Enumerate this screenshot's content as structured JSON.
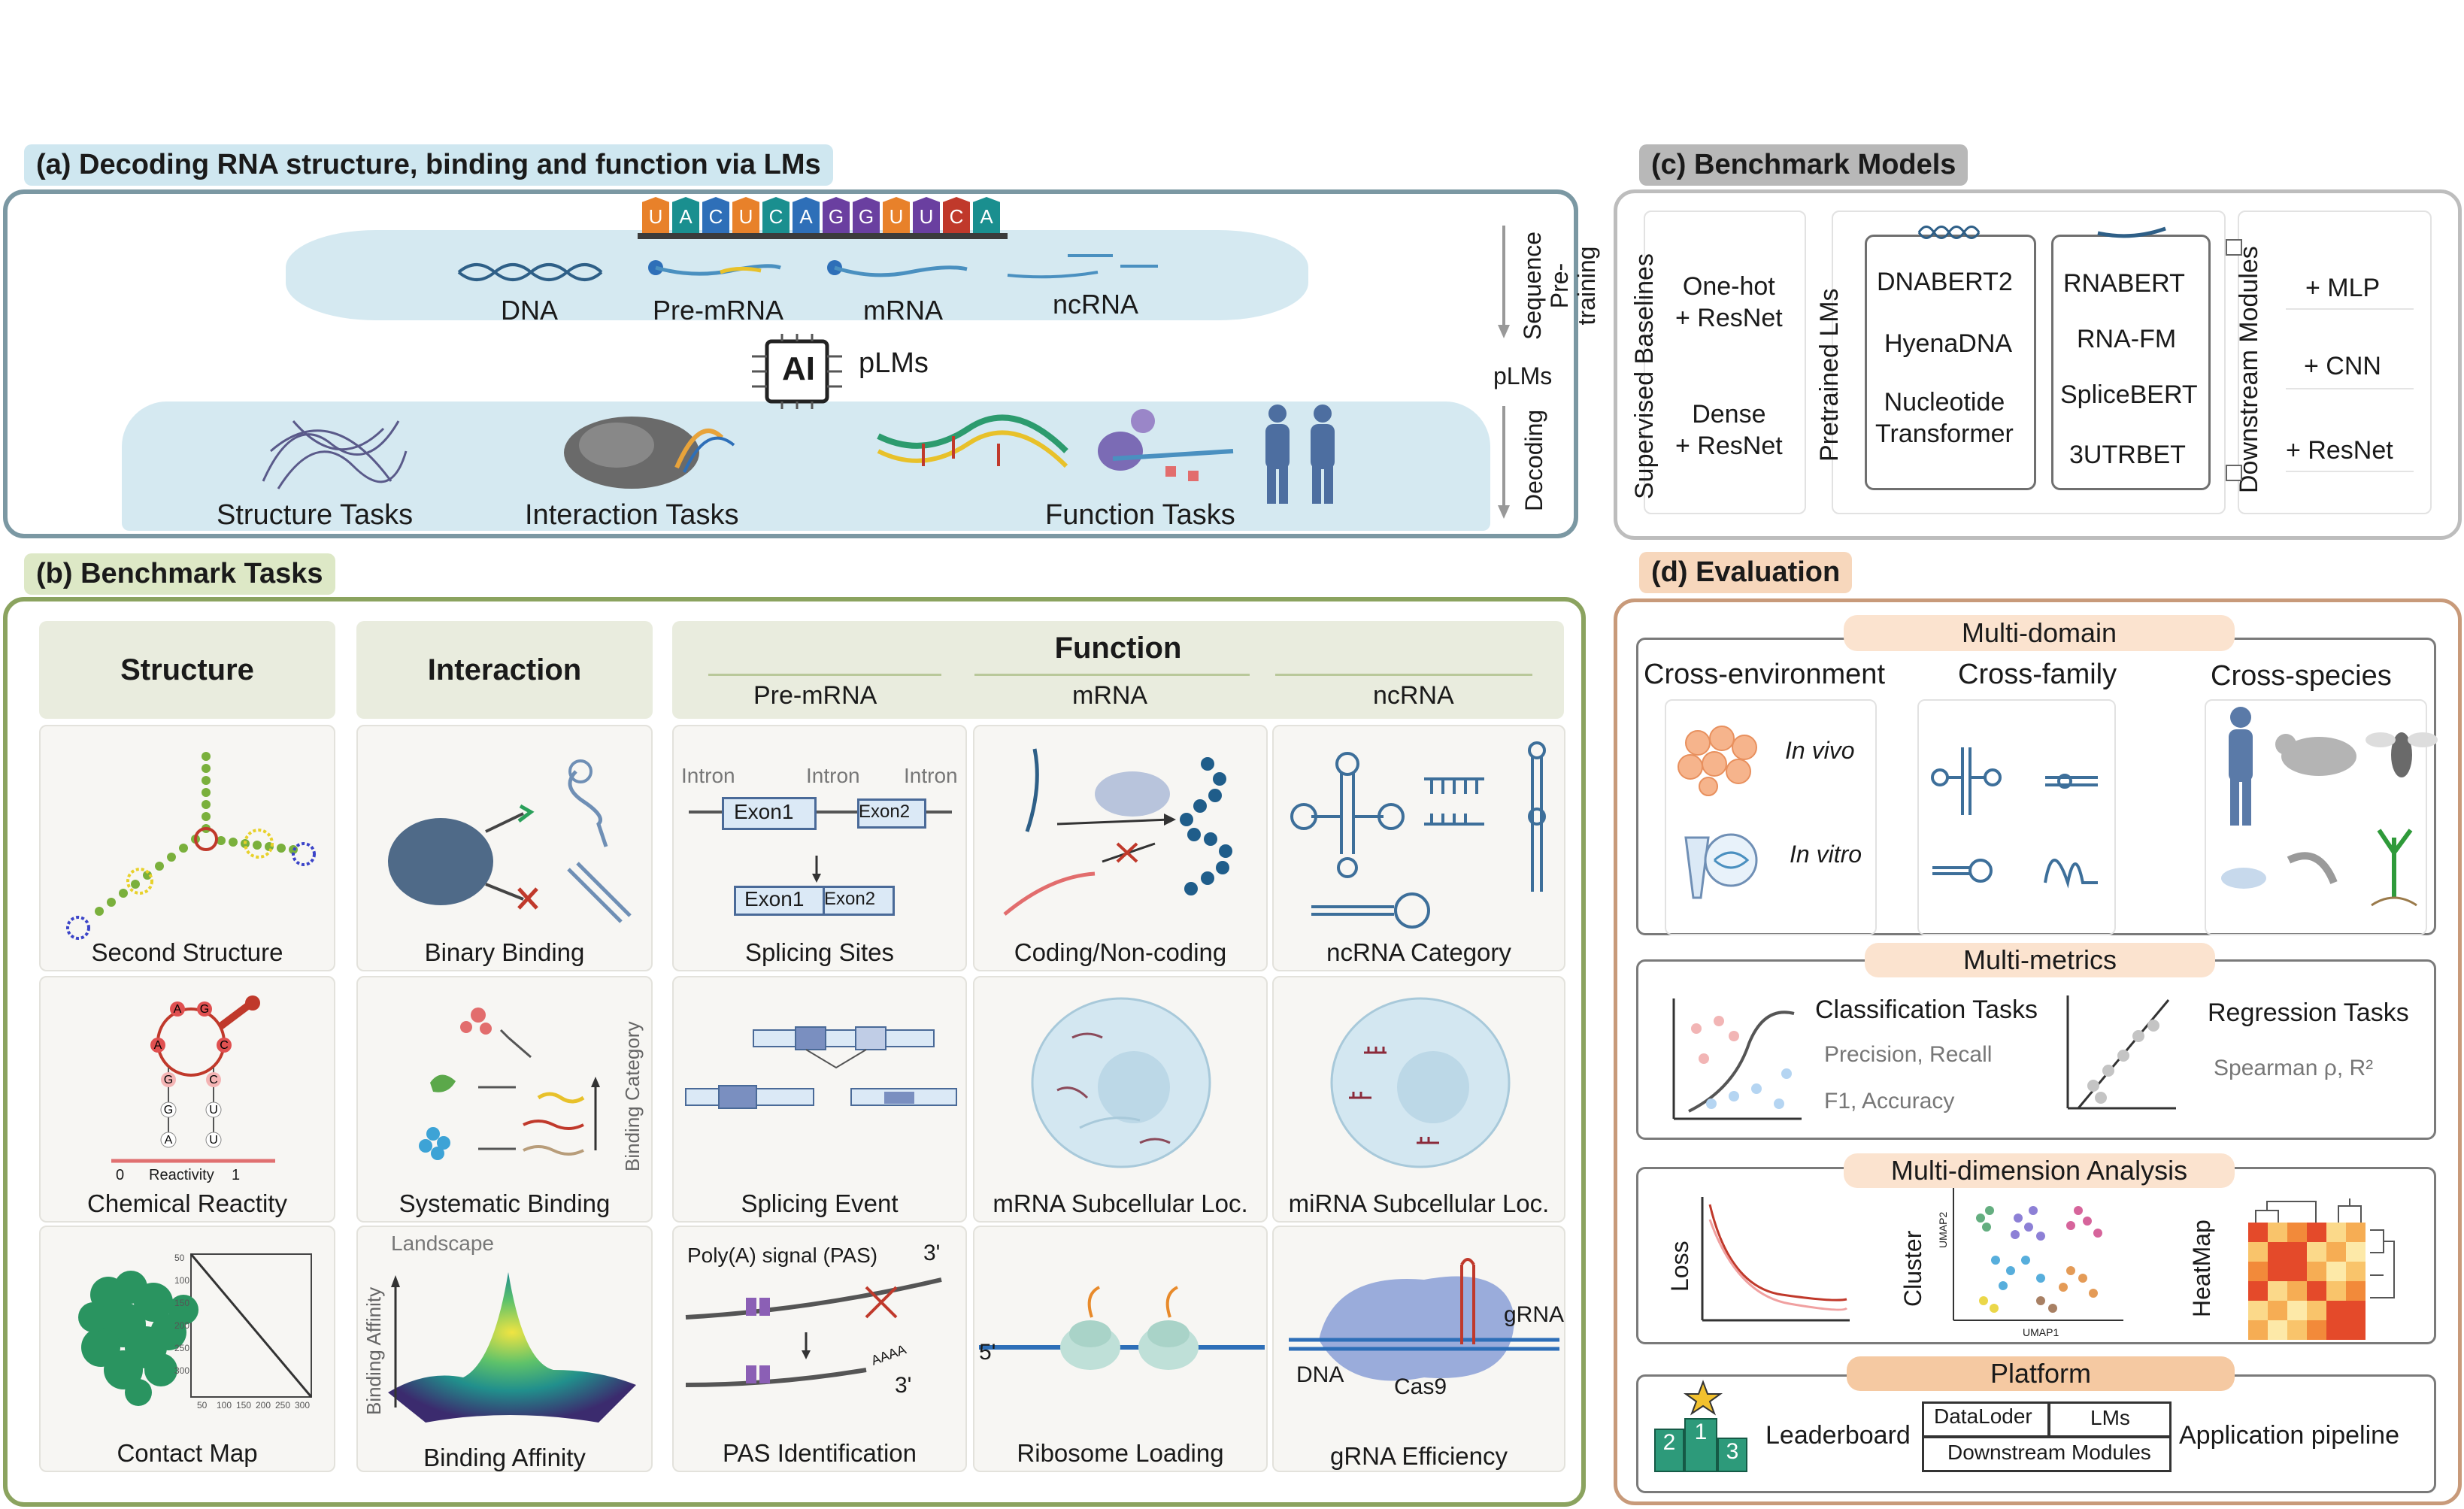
{
  "panel_a": {
    "title": "(a) Decoding RNA structure, binding and function via LMs",
    "sequence_letters": [
      "U",
      "A",
      "C",
      "U",
      "C",
      "A",
      "G",
      "G",
      "U",
      "U",
      "C",
      "A"
    ],
    "molecules": [
      "DNA",
      "Pre-mRNA",
      "mRNA",
      "ncRNA"
    ],
    "ai_chip": "AI",
    "plms": "pLMs",
    "tasks": [
      "Structure Tasks",
      "Interaction Tasks",
      "Function Tasks"
    ],
    "side_pretraining": "Sequence Pre-training",
    "side_plms": "pLMs",
    "side_decoding": "Decoding",
    "colors": {
      "teal": "#1a8f8f",
      "blue": "#2e6fb8",
      "orange": "#e8812a",
      "purple": "#6a3fa0",
      "red": "#c0392b"
    }
  },
  "panel_b": {
    "title": "(b) Benchmark Tasks",
    "headers": {
      "structure": "Structure",
      "interaction": "Interaction",
      "function": "Function"
    },
    "function_sub": [
      "Pre-mRNA",
      "mRNA",
      "ncRNA"
    ],
    "cells": {
      "s1": "Second Structure",
      "s2": "Chemical Reactity",
      "s3": "Contact Map",
      "i1": "Binary Binding",
      "i2": "Systematic Binding",
      "i3": "Binding Affinity",
      "p1": "Splicing Sites",
      "p2": "Splicing Event",
      "p3": "PAS Identification",
      "m1": "Coding/Non-coding",
      "m2": "mRNA Subcellular Loc.",
      "m3": "Ribosome Loading",
      "n1": "ncRNA Category",
      "n2": "miRNA Subcellular Loc.",
      "n3": "gRNA Efficiency"
    },
    "labels": {
      "intron": "Intron",
      "exon1": "Exon1",
      "exon2": "Exon2",
      "reactivity": "Reactivity",
      "r0": "0",
      "r1": "1",
      "hairpin_letters": [
        "A",
        "G",
        "A",
        "C",
        "G",
        "C",
        "G",
        "U",
        "A",
        "U"
      ],
      "binding_category": "Binding Category",
      "landscape": "Landscape",
      "binding_affinity_axis": "Binding Affinity",
      "pas": "Poly(A) signal (PAS)",
      "three_prime": "3'",
      "aaaa": "AAAA",
      "five_prime": "5'",
      "grna": "gRNA",
      "dna": "DNA",
      "cas9": "Cas9",
      "cm_ticks_y": [
        "50",
        "100",
        "150",
        "200",
        "250",
        "300"
      ],
      "cm_ticks_x": [
        "50",
        "100",
        "150",
        "200",
        "250",
        "300"
      ]
    }
  },
  "panel_c": {
    "title": "(c) Benchmark Models",
    "supervised_label": "Supervised Baselines",
    "supervised": [
      "One-hot\n+ ResNet",
      "Dense\n+ ResNet"
    ],
    "pretrained_label": "Pretrained LMs",
    "dna_models": [
      "DNABERT2",
      "HyenaDNA",
      "Nucleotide\nTransformer"
    ],
    "rna_models": [
      "RNABERT",
      "RNA-FM",
      "SpliceBERT",
      "3UTRBET"
    ],
    "downstream_label": "Downstream Modules",
    "modules": [
      "+ MLP",
      "+ CNN",
      "+ ResNet"
    ]
  },
  "panel_d": {
    "title": "(d) Evaluation",
    "multi_domain": "Multi-domain",
    "cross_env": "Cross-environment",
    "cross_family": "Cross-family",
    "cross_species": "Cross-species",
    "in_vivo": "In vivo",
    "in_vitro": "In vitro",
    "multi_metrics": "Multi-metrics",
    "classification": "Classification Tasks",
    "class_metrics_1": "Precision, Recall",
    "class_metrics_2": "F1, Accuracy",
    "regression": "Regression Tasks",
    "reg_metrics": "Spearman ρ,  R²",
    "multi_dim": "Multi-dimension Analysis",
    "loss": "Loss",
    "cluster": "Cluster",
    "umap1": "UMAP1",
    "umap2": "UMAP2",
    "heatmap": "HeatMap",
    "platform": "Platform",
    "leaderboard": "Leaderboard",
    "podium": [
      "2",
      "1",
      "3"
    ],
    "dataloader": "DataLoder",
    "lms": "LMs",
    "downstream_modules": "Downstream Modules",
    "app_pipeline": "Application pipeline"
  }
}
